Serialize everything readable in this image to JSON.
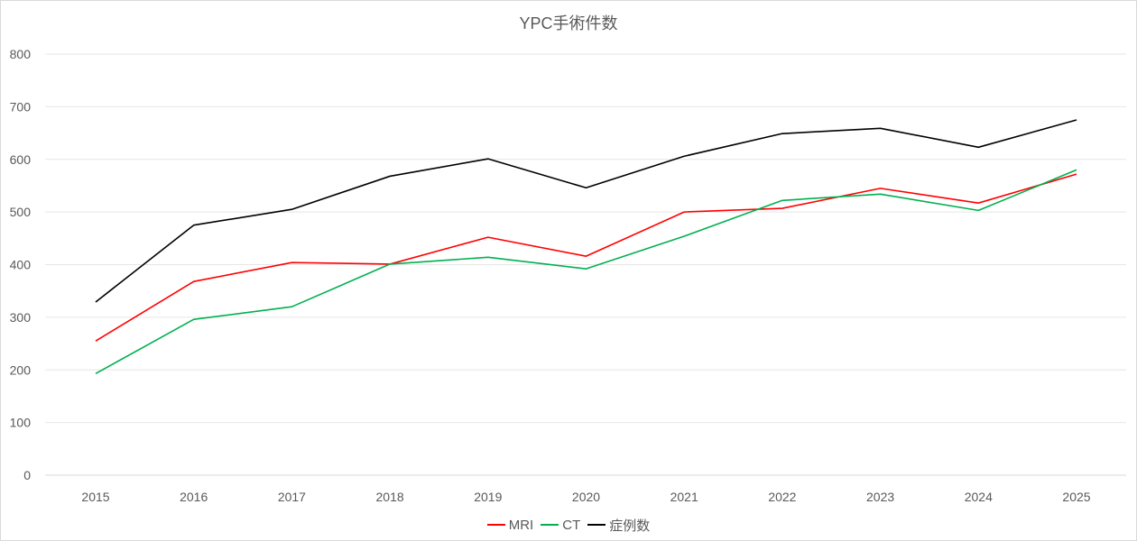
{
  "chart_data": {
    "type": "line",
    "title": "YPC手術件数",
    "xlabel": "",
    "ylabel": "",
    "ylim": [
      0,
      800
    ],
    "yticks": [
      0,
      100,
      200,
      300,
      400,
      500,
      600,
      700,
      800
    ],
    "grid": true,
    "legend_position": "bottom",
    "categories": [
      "2015",
      "2016",
      "2017",
      "2018",
      "2019",
      "2020",
      "2021",
      "2022",
      "2023",
      "2024",
      "2025"
    ],
    "series": [
      {
        "name": "MRI",
        "color": "#ff0000",
        "values": [
          255,
          368,
          404,
          401,
          452,
          416,
          500,
          507,
          545,
          517,
          572
        ]
      },
      {
        "name": "CT",
        "color": "#00b050",
        "values": [
          193,
          296,
          320,
          401,
          414,
          392,
          454,
          522,
          534,
          503,
          580
        ]
      },
      {
        "name": "症例数",
        "color": "#000000",
        "values": [
          329,
          475,
          505,
          568,
          601,
          546,
          606,
          649,
          659,
          623,
          675
        ]
      }
    ]
  }
}
